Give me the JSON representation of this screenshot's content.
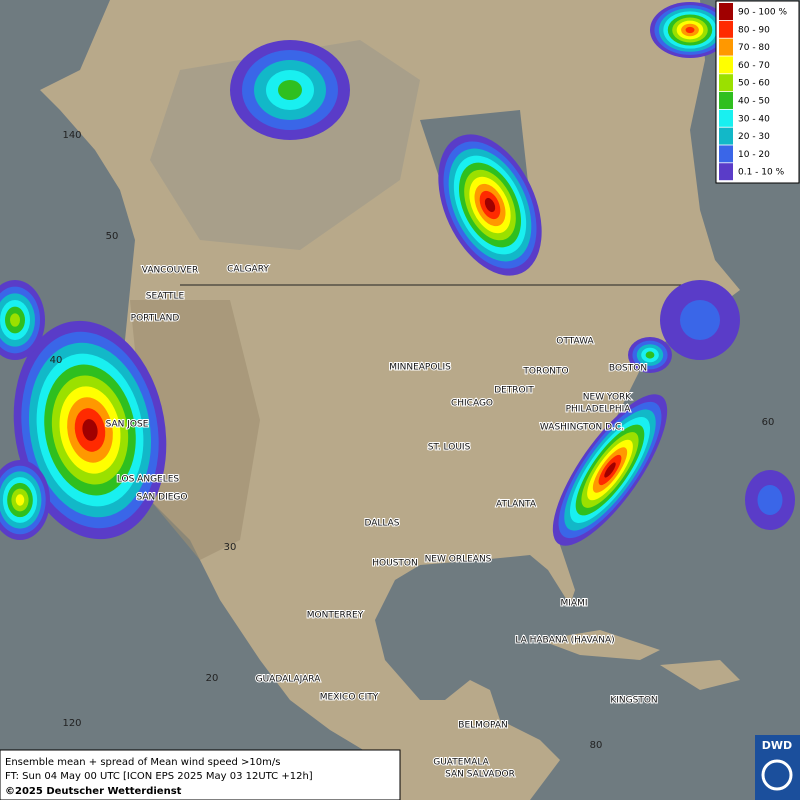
{
  "legend": [
    {
      "label": "90 - 100 %",
      "color": "#a00000"
    },
    {
      "label": "80 - 90",
      "color": "#ff2a00"
    },
    {
      "label": "70 - 80",
      "color": "#ff9800"
    },
    {
      "label": "60 - 70",
      "color": "#ffff00"
    },
    {
      "label": "50 - 60",
      "color": "#9be000"
    },
    {
      "label": "40 - 50",
      "color": "#2fbf1f"
    },
    {
      "label": "30 - 40",
      "color": "#19f0f0"
    },
    {
      "label": "20 - 30",
      "color": "#12b8c8"
    },
    {
      "label": "10 - 20",
      "color": "#3a66e8"
    },
    {
      "label": "0.1 - 10 %",
      "color": "#5a3cc8"
    }
  ],
  "cities": [
    "VANCOUVER",
    "CALGARY",
    "SEATTLE",
    "PORTLAND",
    "MINNEAPOLIS",
    "TORONTO",
    "OTTAWA",
    "BOSTON",
    "DETROIT",
    "CHICAGO",
    "NEW YORK",
    "PHILADELPHIA",
    "WASHINGTON D.C.",
    "SAN JOSE",
    "ST. LOUIS",
    "LOS ANGELES",
    "SAN DIEGO",
    "ATLANTA",
    "DALLAS",
    "HOUSTON",
    "NEW ORLEANS",
    "MIAMI",
    "MONTERREY",
    "LA HABANA (HAVANA)",
    "GUADALAJARA",
    "MEXICO CITY",
    "KINGSTON",
    "BELMOPAN",
    "GUATEMALA",
    "SAN SALVADOR"
  ],
  "graticule_labels": [
    140,
    50,
    40,
    30,
    20,
    120,
    60,
    80
  ],
  "caption": [
    "Ensemble mean + spread of Mean wind speed >10m/s",
    "FT: Sun 04 May 00 UTC [ICON EPS 2025 May 03 12UTC +12h]",
    "©2025 Deutscher Wetterdienst"
  ],
  "logo": "DWD"
}
